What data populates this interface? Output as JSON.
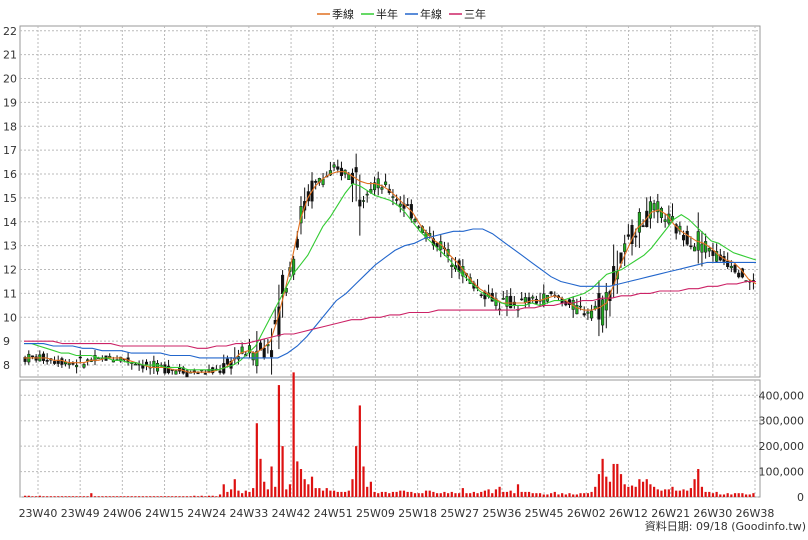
{
  "chart_data": [
    {
      "type": "candlestick",
      "x_ticks": [
        "23W40",
        "23W49",
        "24W06",
        "24W15",
        "24W24",
        "24W33",
        "24W42",
        "24W51",
        "25W09",
        "25W18",
        "25W27",
        "25W36",
        "25W45",
        "26W02",
        "26W12",
        "26W21",
        "26W30",
        "26W38"
      ],
      "y_ticks": [
        "8",
        "9",
        "10",
        "11",
        "12",
        "13",
        "14",
        "15",
        "16",
        "17",
        "18",
        "19",
        "20",
        "21",
        "22"
      ],
      "ylim": [
        7.5,
        22.2
      ],
      "grid": true,
      "legend_position": "top-center",
      "colors": {
        "up": "#22aa22",
        "down": "#111111",
        "volume": "#dd1111",
        "ma_quarter": "#e07020",
        "ma_half": "#33cc33",
        "ma_year": "#2266cc",
        "ma_3y": "#cc2266"
      },
      "series": [
        {
          "name": "季線",
          "color": "#e07020",
          "values": [
            8.3,
            8.3,
            8.3,
            8.3,
            8.2,
            8.2,
            8.1,
            8.1,
            8.1,
            8.2,
            8.2,
            8.3,
            8.3,
            8.3,
            8.2,
            8.1,
            8.0,
            7.9,
            7.9,
            7.9,
            7.8,
            7.8,
            7.7,
            7.7,
            7.7,
            7.7,
            7.8,
            7.9,
            8.2,
            8.5,
            8.6,
            8.5,
            8.7,
            9.0,
            10.0,
            11.2,
            12.6,
            14.1,
            15.0,
            15.5,
            15.8,
            16.0,
            16.1,
            16.1,
            15.9,
            15.7,
            15.6,
            15.6,
            15.5,
            15.3,
            15.0,
            14.7,
            14.4,
            13.9,
            13.5,
            13.2,
            13.0,
            12.6,
            12.3,
            11.9,
            11.5,
            11.2,
            11.0,
            10.8,
            10.6,
            10.6,
            10.6,
            10.6,
            10.7,
            10.7,
            10.8,
            10.9,
            10.8,
            10.6,
            10.4,
            10.3,
            10.3,
            10.4,
            10.6,
            11.4,
            12.3,
            13.0,
            13.7,
            14.0,
            14.4,
            14.5,
            14.3,
            13.9,
            13.6,
            13.4,
            13.2,
            13.1,
            12.9,
            12.6,
            12.4,
            12.3,
            12.0,
            11.6,
            11.4
          ]
        },
        {
          "name": "半年",
          "color": "#33cc33",
          "values": [
            8.9,
            8.9,
            8.8,
            8.7,
            8.6,
            8.5,
            8.5,
            8.4,
            8.4,
            8.4,
            8.3,
            8.3,
            8.2,
            8.2,
            8.1,
            8.1,
            8.0,
            8.0,
            8.0,
            7.9,
            7.9,
            7.9,
            7.8,
            7.8,
            7.8,
            7.8,
            7.8,
            7.9,
            8.0,
            8.2,
            8.5,
            8.8,
            9.4,
            10.0,
            10.6,
            11.2,
            11.8,
            12.2,
            12.6,
            13.2,
            13.8,
            14.2,
            14.7,
            15.2,
            15.6,
            15.5,
            15.3,
            15.1,
            15.0,
            14.9,
            14.7,
            14.4,
            14.0,
            13.6,
            13.3,
            13.0,
            12.7,
            12.4,
            12.0,
            11.7,
            11.4,
            11.1,
            10.9,
            10.7,
            10.6,
            10.5,
            10.5,
            10.5,
            10.6,
            10.5,
            10.6,
            10.7,
            10.7,
            10.8,
            10.9,
            11.0,
            11.2,
            11.5,
            11.8,
            11.9,
            12.0,
            12.2,
            12.4,
            12.6,
            12.9,
            13.3,
            13.7,
            14.1,
            14.3,
            14.1,
            13.8,
            13.5,
            13.2,
            13.1,
            12.9,
            12.7,
            12.6,
            12.5,
            12.4
          ]
        },
        {
          "name": "年線",
          "color": "#2266cc",
          "values": [
            8.9,
            8.9,
            8.9,
            8.8,
            8.8,
            8.8,
            8.7,
            8.7,
            8.6,
            8.6,
            8.6,
            8.5,
            8.5,
            8.5,
            8.5,
            8.4,
            8.4,
            8.4,
            8.3,
            8.3,
            8.3,
            8.3,
            8.3,
            8.3,
            8.3,
            8.3,
            8.3,
            8.5,
            8.8,
            9.2,
            9.7,
            10.2,
            10.7,
            11.0,
            11.4,
            11.8,
            12.2,
            12.5,
            12.8,
            13.0,
            13.1,
            13.3,
            13.4,
            13.5,
            13.6,
            13.6,
            13.7,
            13.7,
            13.5,
            13.2,
            12.9,
            12.6,
            12.3,
            12.0,
            11.7,
            11.5,
            11.4,
            11.3,
            11.3,
            11.3,
            11.3,
            11.4,
            11.5,
            11.6,
            11.7,
            11.8,
            11.9,
            12.0,
            12.1,
            12.2,
            12.3,
            12.3,
            12.3,
            12.3,
            12.3,
            12.3
          ]
        },
        {
          "name": "三年",
          "color": "#cc2266",
          "values": [
            9.0,
            9.0,
            9.0,
            9.0,
            8.9,
            8.9,
            8.9,
            8.9,
            8.9,
            8.9,
            8.8,
            8.8,
            8.8,
            8.8,
            8.8,
            8.8,
            8.8,
            8.8,
            8.7,
            8.7,
            8.8,
            8.8,
            8.9,
            8.9,
            9.0,
            9.1,
            9.2,
            9.3,
            9.3,
            9.4,
            9.5,
            9.6,
            9.7,
            9.8,
            9.9,
            9.9,
            10.0,
            10.0,
            10.1,
            10.1,
            10.2,
            10.2,
            10.2,
            10.3,
            10.3,
            10.3,
            10.3,
            10.3,
            10.3,
            10.3,
            10.3,
            10.3,
            10.4,
            10.4,
            10.5,
            10.5,
            10.6,
            10.6,
            10.7,
            10.7,
            10.8,
            10.8,
            10.9,
            10.9,
            11.0,
            11.0,
            11.1,
            11.1,
            11.1,
            11.2,
            11.2,
            11.3,
            11.3,
            11.4,
            11.4,
            11.5,
            11.5
          ]
        }
      ]
    },
    {
      "type": "bar",
      "y_ticks": [
        "0",
        "100,000",
        "200,000",
        "300,000",
        "400,000"
      ],
      "ylim": [
        0,
        460000
      ],
      "values": [
        5000,
        5000,
        3000,
        3000,
        5000,
        3000,
        3000,
        3000,
        3000,
        3000,
        3000,
        3000,
        3000,
        3000,
        3000,
        3000,
        3000,
        3000,
        15000,
        3000,
        3000,
        3000,
        3000,
        3000,
        3000,
        3000,
        3000,
        3000,
        3000,
        3000,
        3000,
        3000,
        3000,
        3000,
        3000,
        3000,
        3000,
        3000,
        3000,
        3000,
        3000,
        3000,
        3000,
        3000,
        3000,
        3000,
        5000,
        3000,
        5000,
        3000,
        5000,
        5000,
        3000,
        10000,
        50000,
        20000,
        30000,
        70000,
        25000,
        15000,
        25000,
        20000,
        35000,
        290000,
        150000,
        60000,
        30000,
        120000,
        40000,
        440000,
        200000,
        30000,
        50000,
        490000,
        140000,
        110000,
        70000,
        50000,
        80000,
        35000,
        35000,
        25000,
        35000,
        25000,
        25000,
        20000,
        20000,
        20000,
        25000,
        70000,
        200000,
        360000,
        120000,
        40000,
        60000,
        20000,
        15000,
        20000,
        20000,
        15000,
        20000,
        20000,
        25000,
        25000,
        20000,
        20000,
        15000,
        15000,
        15000,
        25000,
        25000,
        20000,
        15000,
        15000,
        20000,
        15000,
        20000,
        15000,
        15000,
        35000,
        15000,
        15000,
        20000,
        15000,
        20000,
        25000,
        30000,
        15000,
        30000,
        40000,
        20000,
        20000,
        25000,
        15000,
        50000,
        20000,
        20000,
        20000,
        15000,
        15000,
        15000,
        10000,
        10000,
        15000,
        20000,
        10000,
        15000,
        10000,
        15000,
        10000,
        10000,
        15000,
        15000,
        15000,
        20000,
        40000,
        90000,
        150000,
        80000,
        60000,
        130000,
        130000,
        90000,
        50000,
        40000,
        45000,
        40000,
        70000,
        60000,
        70000,
        50000,
        40000,
        30000,
        25000,
        30000,
        30000,
        40000,
        25000,
        25000,
        30000,
        25000,
        35000,
        70000,
        110000,
        40000,
        20000,
        20000,
        15000,
        20000,
        10000,
        10000,
        15000,
        10000,
        15000,
        15000,
        15000,
        10000,
        10000,
        15000
      ]
    }
  ],
  "legend": {
    "quarter": "季線",
    "half": "半年",
    "year": "年線",
    "three_year": "三年"
  },
  "credit": "資料日期: 09/18  (Goodinfo.tw)"
}
